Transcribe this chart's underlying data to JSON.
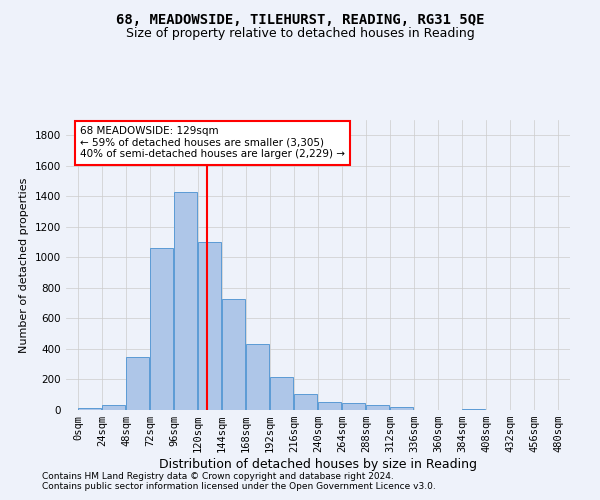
{
  "title": "68, MEADOWSIDE, TILEHURST, READING, RG31 5QE",
  "subtitle": "Size of property relative to detached houses in Reading",
  "xlabel": "Distribution of detached houses by size in Reading",
  "ylabel": "Number of detached properties",
  "footer_line1": "Contains HM Land Registry data © Crown copyright and database right 2024.",
  "footer_line2": "Contains public sector information licensed under the Open Government Licence v3.0.",
  "bin_labels": [
    "0sqm",
    "24sqm",
    "48sqm",
    "72sqm",
    "96sqm",
    "120sqm",
    "144sqm",
    "168sqm",
    "192sqm",
    "216sqm",
    "240sqm",
    "264sqm",
    "288sqm",
    "312sqm",
    "336sqm",
    "360sqm",
    "384sqm",
    "408sqm",
    "432sqm",
    "456sqm",
    "480sqm"
  ],
  "bar_values": [
    10,
    35,
    350,
    1060,
    1430,
    1100,
    730,
    430,
    215,
    105,
    50,
    45,
    30,
    20,
    0,
    0,
    5,
    0,
    0,
    0,
    0
  ],
  "bar_color": "#aec6e8",
  "bar_edgecolor": "#5b9bd5",
  "vline_x": 129,
  "vline_color": "red",
  "annotation_text": "68 MEADOWSIDE: 129sqm\n← 59% of detached houses are smaller (3,305)\n40% of semi-detached houses are larger (2,229) →",
  "annotation_box_color": "white",
  "annotation_box_edgecolor": "red",
  "ylim": [
    0,
    1900
  ],
  "xlim": [
    -12,
    492
  ],
  "background_color": "#eef2fa",
  "grid_color": "#cccccc",
  "title_fontsize": 10,
  "subtitle_fontsize": 9,
  "xlabel_fontsize": 9,
  "ylabel_fontsize": 8,
  "tick_fontsize": 7.5,
  "annotation_fontsize": 7.5,
  "footer_fontsize": 6.5
}
